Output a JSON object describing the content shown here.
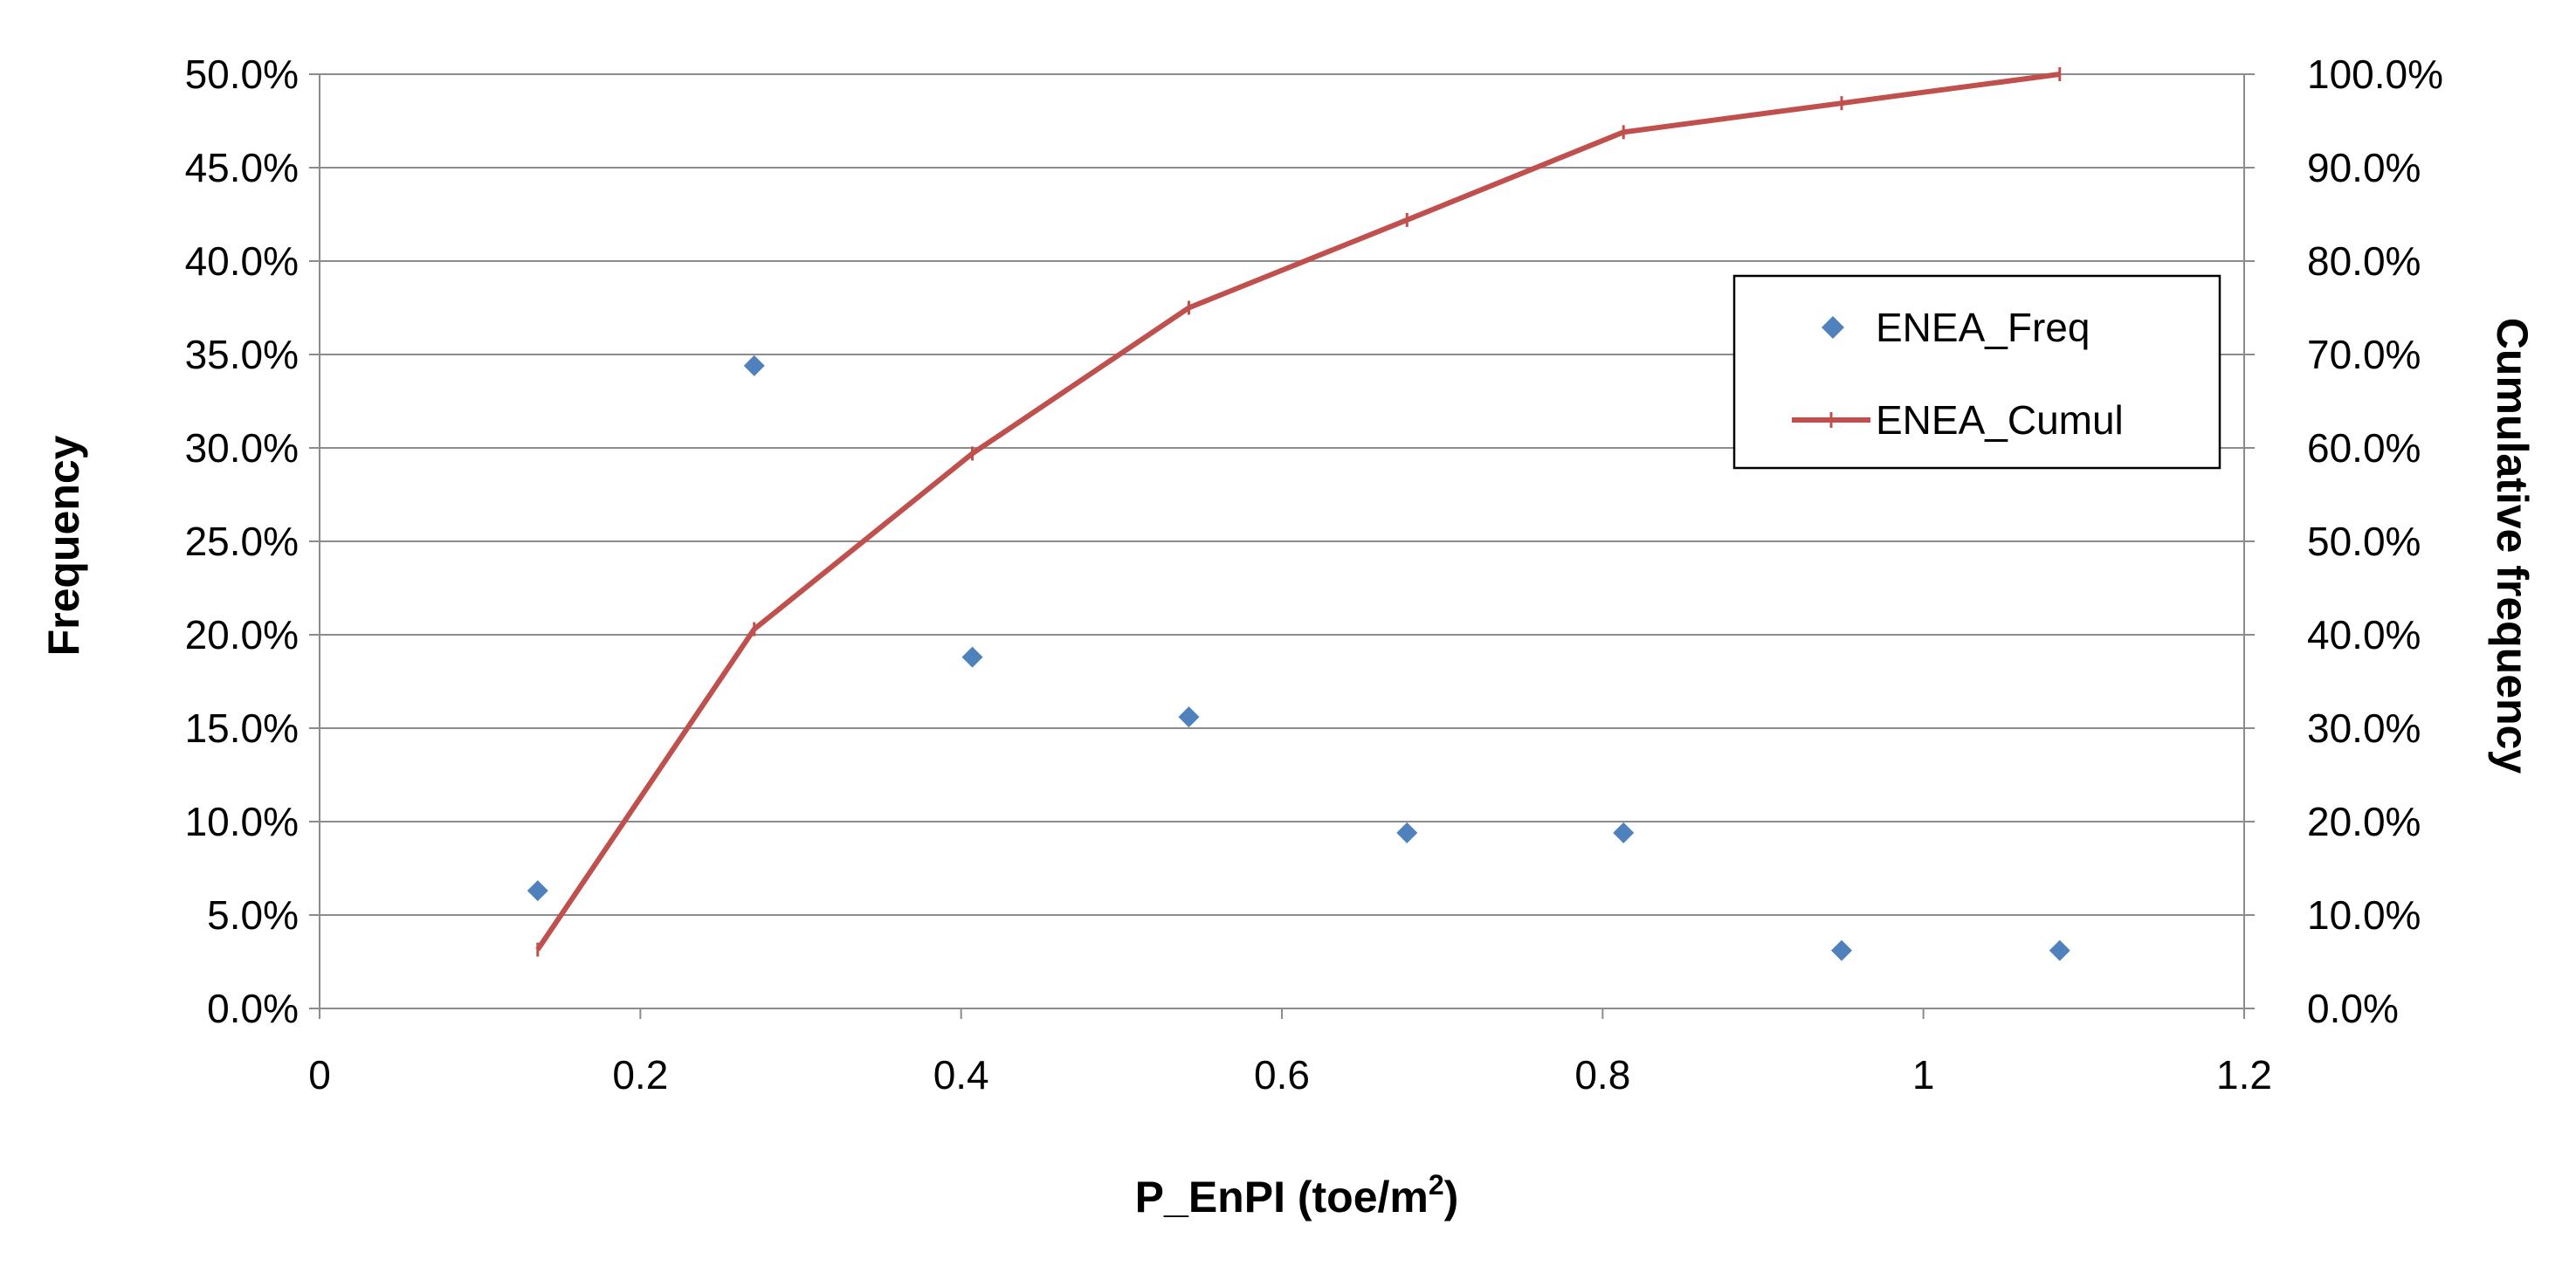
{
  "chart_data": {
    "type": "scatter",
    "title": "",
    "xlabel": "P_EnPI (toe/m",
    "xlabel_superscript": "2",
    "xlabel_suffix": ")",
    "ylabel_left": "Frequency",
    "ylabel_right": "Cumulative frequency",
    "xlim": [
      0,
      1.2
    ],
    "ylim_left": [
      0,
      50
    ],
    "ylim_right": [
      0,
      100
    ],
    "x_ticks": [
      "0",
      "0.2",
      "0.4",
      "0.6",
      "0.8",
      "1",
      "1.2"
    ],
    "y_left_ticks": [
      "0.0%",
      "5.0%",
      "10.0%",
      "15.0%",
      "20.0%",
      "25.0%",
      "30.0%",
      "35.0%",
      "40.0%",
      "45.0%",
      "50.0%"
    ],
    "y_right_ticks": [
      "0.0%",
      "10.0%",
      "20.0%",
      "30.0%",
      "40.0%",
      "50.0%",
      "60.0%",
      "70.0%",
      "80.0%",
      "90.0%",
      "100.0%"
    ],
    "grid": "horizontal",
    "legend_position": "right",
    "series": [
      {
        "name": "ENEA_Freq",
        "type": "scatter",
        "axis": "left",
        "marker": "diamond",
        "color": "#4F81BD",
        "x": [
          0.136,
          0.271,
          0.407,
          0.542,
          0.678,
          0.813,
          0.949,
          1.085
        ],
        "y": [
          6.3,
          34.4,
          18.8,
          15.6,
          9.4,
          9.4,
          3.1,
          3.1
        ]
      },
      {
        "name": "ENEA_Cumul",
        "type": "line",
        "axis": "right",
        "marker": "plus",
        "color": "#C0504D",
        "x": [
          0.136,
          0.271,
          0.407,
          0.542,
          0.678,
          0.813,
          0.949,
          1.085
        ],
        "y": [
          6.3,
          40.6,
          59.4,
          75.0,
          84.4,
          93.8,
          96.9,
          100.0
        ]
      }
    ]
  }
}
